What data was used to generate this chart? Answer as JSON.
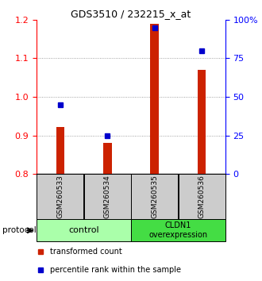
{
  "title": "GDS3510 / 232215_x_at",
  "samples": [
    "GSM260533",
    "GSM260534",
    "GSM260535",
    "GSM260536"
  ],
  "red_values": [
    0.922,
    0.882,
    1.19,
    1.07
  ],
  "blue_values": [
    45,
    25,
    95,
    80
  ],
  "ylim_left": [
    0.8,
    1.2
  ],
  "ylim_right": [
    0,
    100
  ],
  "yticks_left": [
    0.8,
    0.9,
    1.0,
    1.1,
    1.2
  ],
  "yticks_right": [
    0,
    25,
    50,
    75,
    100
  ],
  "ytick_labels_right": [
    "0",
    "25",
    "50",
    "75",
    "100%"
  ],
  "bar_baseline": 0.8,
  "bar_color": "#cc2200",
  "dot_color": "#0000cc",
  "group1_label": "control",
  "group2_label": "CLDN1\noverexpression",
  "group1_color": "#aaffaa",
  "group2_color": "#44dd44",
  "sample_box_color": "#cccccc",
  "legend_red_label": "transformed count",
  "legend_blue_label": "percentile rank within the sample",
  "protocol_label": "protocol",
  "grid_color": "#888888",
  "bar_width": 0.18
}
